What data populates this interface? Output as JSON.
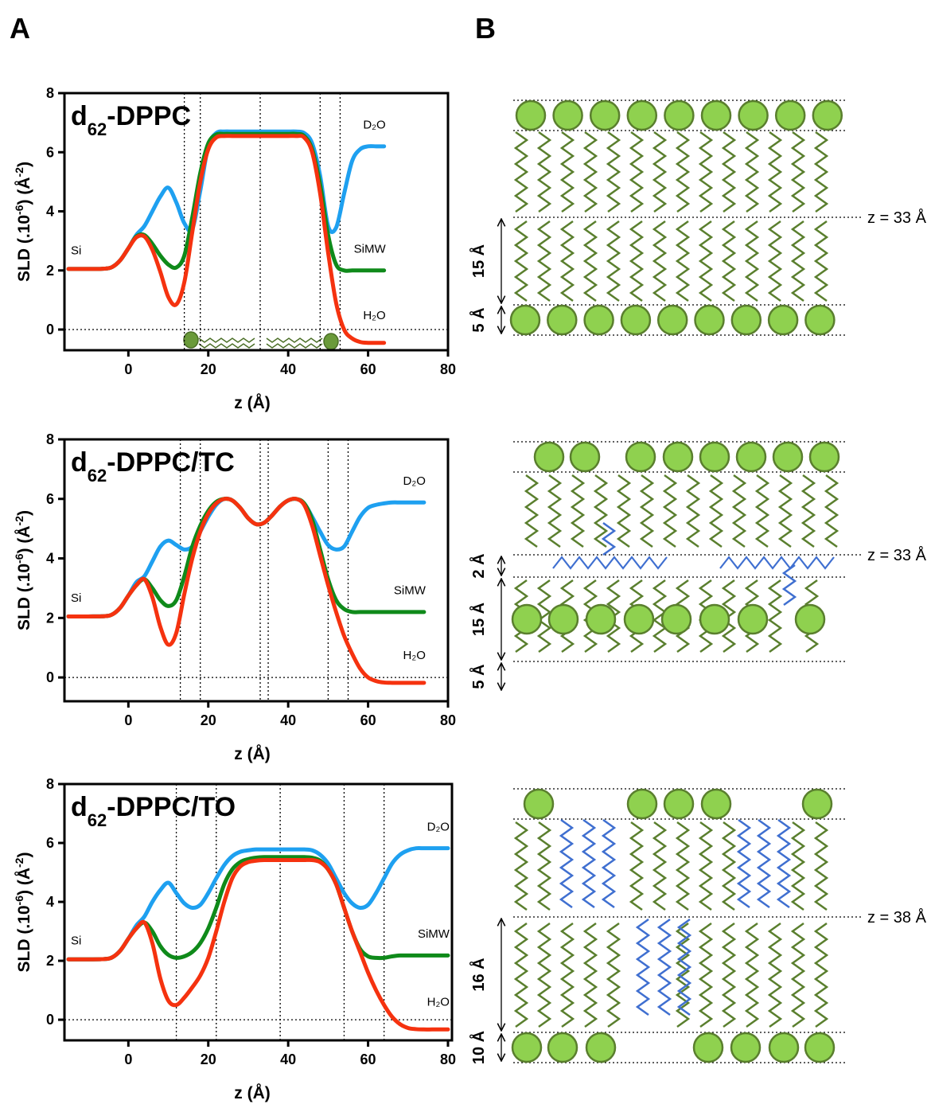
{
  "panel_labels": [
    "A",
    "B"
  ],
  "chart_data": [
    {
      "type": "line",
      "title": [
        "d",
        "62",
        "-DPPC"
      ],
      "y_label": [
        "SLD (.10",
        "-6",
        ") (Å",
        "-2",
        ")"
      ],
      "x_label": "z (Å)",
      "annotation": "Si",
      "xlim": [
        -16,
        80
      ],
      "ylim": [
        -0.7,
        8
      ],
      "xticks": [
        0,
        20,
        40,
        60,
        80
      ],
      "yticks": [
        0,
        2,
        4,
        6,
        8
      ],
      "vlines": [
        14,
        18,
        33,
        48,
        53
      ],
      "hline": 0,
      "x": [
        -15,
        -10,
        -6,
        -4,
        -2,
        0,
        2,
        4,
        6,
        8,
        10,
        12,
        14,
        16,
        18,
        20,
        22,
        24,
        26,
        28,
        30,
        32,
        34,
        36,
        38,
        40,
        42,
        44,
        46,
        48,
        50,
        52,
        54,
        56,
        58,
        60,
        62,
        64
      ],
      "series": [
        {
          "name": "D₂O",
          "color": "#1ea0f0",
          "values": [
            2.05,
            2.05,
            2.06,
            2.12,
            2.35,
            2.75,
            3.2,
            3.5,
            4.0,
            4.5,
            4.8,
            4.3,
            3.6,
            3.4,
            4.7,
            6.2,
            6.65,
            6.7,
            6.7,
            6.7,
            6.7,
            6.7,
            6.7,
            6.7,
            6.7,
            6.7,
            6.7,
            6.65,
            6.3,
            5.2,
            3.5,
            3.45,
            4.6,
            5.7,
            6.1,
            6.2,
            6.2,
            6.2
          ]
        },
        {
          "name": "SiMW",
          "color": "#0f8a1a",
          "values": [
            2.05,
            2.05,
            2.06,
            2.12,
            2.35,
            2.75,
            3.15,
            3.2,
            2.9,
            2.5,
            2.2,
            2.1,
            2.5,
            3.8,
            5.3,
            6.3,
            6.6,
            6.62,
            6.62,
            6.62,
            6.62,
            6.62,
            6.62,
            6.62,
            6.62,
            6.62,
            6.62,
            6.55,
            6.1,
            4.9,
            3.2,
            2.2,
            2.0,
            2.0,
            2.0,
            2.0,
            2.0,
            2.0
          ]
        },
        {
          "name": "H₂O",
          "color": "#f5320f",
          "values": [
            2.05,
            2.05,
            2.06,
            2.12,
            2.35,
            2.75,
            3.12,
            3.15,
            2.7,
            1.95,
            1.1,
            0.85,
            1.6,
            3.3,
            5.0,
            6.1,
            6.5,
            6.55,
            6.55,
            6.55,
            6.55,
            6.55,
            6.55,
            6.55,
            6.55,
            6.55,
            6.55,
            6.5,
            6.0,
            4.6,
            2.6,
            0.9,
            0.0,
            -0.3,
            -0.42,
            -0.45,
            -0.45,
            -0.45
          ]
        }
      ]
    },
    {
      "type": "line",
      "title": [
        "d",
        "62",
        "-DPPC/TC"
      ],
      "y_label": [
        "SLD (.10",
        "-6",
        ") (Å",
        "-2",
        ")"
      ],
      "x_label": "z (Å)",
      "annotation": "Si",
      "xlim": [
        -16,
        80
      ],
      "ylim": [
        -0.8,
        8
      ],
      "xticks": [
        0,
        20,
        40,
        60,
        80
      ],
      "yticks": [
        0,
        2,
        4,
        6,
        8
      ],
      "vlines": [
        13,
        18,
        33,
        35,
        50,
        55
      ],
      "hline": 0,
      "x": [
        -15,
        -10,
        -6,
        -4,
        -2,
        0,
        2,
        4,
        6,
        8,
        10,
        12,
        14,
        16,
        18,
        20,
        22,
        24,
        26,
        28,
        30,
        32,
        34,
        36,
        38,
        40,
        42,
        44,
        46,
        48,
        50,
        52,
        54,
        56,
        58,
        60,
        62,
        64,
        66,
        68,
        70,
        72,
        74
      ],
      "series": [
        {
          "name": "D₂O",
          "color": "#1ea0f0",
          "values": [
            2.05,
            2.05,
            2.06,
            2.12,
            2.35,
            2.75,
            3.2,
            3.4,
            3.9,
            4.4,
            4.6,
            4.45,
            4.3,
            4.4,
            4.9,
            5.4,
            5.8,
            6.0,
            5.95,
            5.7,
            5.35,
            5.15,
            5.2,
            5.45,
            5.75,
            5.95,
            6.0,
            5.85,
            5.4,
            4.9,
            4.45,
            4.3,
            4.4,
            4.9,
            5.4,
            5.7,
            5.8,
            5.85,
            5.88,
            5.88,
            5.88,
            5.88,
            5.88
          ]
        },
        {
          "name": "SiMW",
          "color": "#0f8a1a",
          "values": [
            2.05,
            2.05,
            2.06,
            2.12,
            2.35,
            2.75,
            3.1,
            3.3,
            3.0,
            2.6,
            2.4,
            2.6,
            3.4,
            4.4,
            5.1,
            5.6,
            5.9,
            6.0,
            5.95,
            5.7,
            5.35,
            5.15,
            5.2,
            5.45,
            5.75,
            5.95,
            6.0,
            5.85,
            5.3,
            4.3,
            3.3,
            2.6,
            2.3,
            2.2,
            2.2,
            2.2,
            2.2,
            2.2,
            2.2,
            2.2,
            2.2,
            2.2,
            2.2
          ]
        },
        {
          "name": "H₂O",
          "color": "#f5320f",
          "values": [
            2.05,
            2.05,
            2.06,
            2.12,
            2.35,
            2.75,
            3.1,
            3.3,
            2.7,
            1.7,
            1.1,
            1.5,
            2.8,
            4.0,
            4.9,
            5.5,
            5.85,
            6.0,
            5.95,
            5.7,
            5.35,
            5.15,
            5.2,
            5.45,
            5.75,
            5.95,
            6.0,
            5.8,
            5.1,
            4.1,
            3.1,
            2.2,
            1.4,
            0.8,
            0.3,
            0.0,
            -0.12,
            -0.17,
            -0.18,
            -0.18,
            -0.18,
            -0.18,
            -0.18
          ]
        }
      ]
    },
    {
      "type": "line",
      "title": [
        "d",
        "62",
        "-DPPC/TO"
      ],
      "y_label": [
        "SLD (.10",
        "-6",
        ") (Å",
        "-2",
        ")"
      ],
      "x_label": "z (Å)",
      "annotation": "Si",
      "xlim": [
        -16,
        81
      ],
      "ylim": [
        -0.7,
        8
      ],
      "xticks": [
        0,
        20,
        40,
        60,
        80
      ],
      "yticks": [
        0,
        2,
        4,
        6,
        8
      ],
      "vlines": [
        12,
        22,
        38,
        54,
        64
      ],
      "hline": 0,
      "x": [
        -15,
        -10,
        -6,
        -4,
        -2,
        0,
        2,
        4,
        6,
        8,
        10,
        12,
        14,
        16,
        18,
        20,
        22,
        24,
        26,
        28,
        30,
        32,
        34,
        36,
        38,
        40,
        42,
        44,
        46,
        48,
        50,
        52,
        54,
        56,
        58,
        60,
        62,
        64,
        66,
        68,
        70,
        72,
        74,
        76,
        78,
        80
      ],
      "series": [
        {
          "name": "D₂O",
          "color": "#1ea0f0",
          "values": [
            2.05,
            2.05,
            2.06,
            2.12,
            2.35,
            2.75,
            3.2,
            3.5,
            4.0,
            4.4,
            4.65,
            4.3,
            3.95,
            3.8,
            3.9,
            4.3,
            4.8,
            5.25,
            5.55,
            5.7,
            5.75,
            5.78,
            5.78,
            5.78,
            5.78,
            5.78,
            5.78,
            5.78,
            5.75,
            5.6,
            5.3,
            4.8,
            4.3,
            3.95,
            3.8,
            3.9,
            4.3,
            4.8,
            5.3,
            5.6,
            5.75,
            5.82,
            5.82,
            5.82,
            5.82,
            5.82
          ]
        },
        {
          "name": "SiMW",
          "color": "#0f8a1a",
          "values": [
            2.05,
            2.05,
            2.06,
            2.12,
            2.35,
            2.75,
            3.1,
            3.3,
            3.0,
            2.5,
            2.2,
            2.1,
            2.15,
            2.3,
            2.6,
            3.1,
            3.8,
            4.6,
            5.1,
            5.35,
            5.45,
            5.5,
            5.52,
            5.52,
            5.52,
            5.52,
            5.52,
            5.52,
            5.5,
            5.4,
            5.1,
            4.6,
            3.8,
            3.0,
            2.4,
            2.15,
            2.1,
            2.1,
            2.15,
            2.18,
            2.18,
            2.18,
            2.18,
            2.18,
            2.18,
            2.18
          ]
        },
        {
          "name": "H₂O",
          "color": "#f5320f",
          "values": [
            2.05,
            2.05,
            2.06,
            2.12,
            2.35,
            2.75,
            3.1,
            3.3,
            2.6,
            1.4,
            0.65,
            0.5,
            0.75,
            1.1,
            1.5,
            2.1,
            3.0,
            4.0,
            4.8,
            5.2,
            5.35,
            5.4,
            5.42,
            5.42,
            5.42,
            5.42,
            5.42,
            5.42,
            5.42,
            5.35,
            5.1,
            4.6,
            3.8,
            3.0,
            2.3,
            1.6,
            1.0,
            0.5,
            0.1,
            -0.15,
            -0.28,
            -0.32,
            -0.33,
            -0.33,
            -0.33,
            -0.33
          ]
        }
      ]
    }
  ],
  "diagrams": [
    {
      "z_label": "z = 33 Å",
      "dims": [
        "15 Å",
        "5 Å"
      ]
    },
    {
      "z_label": "z = 33 Å",
      "dims": [
        "2 Å",
        "15 Å",
        "5 Å"
      ]
    },
    {
      "z_label": "z = 38 Å",
      "dims": [
        "16 Å",
        "10 Å"
      ]
    }
  ]
}
